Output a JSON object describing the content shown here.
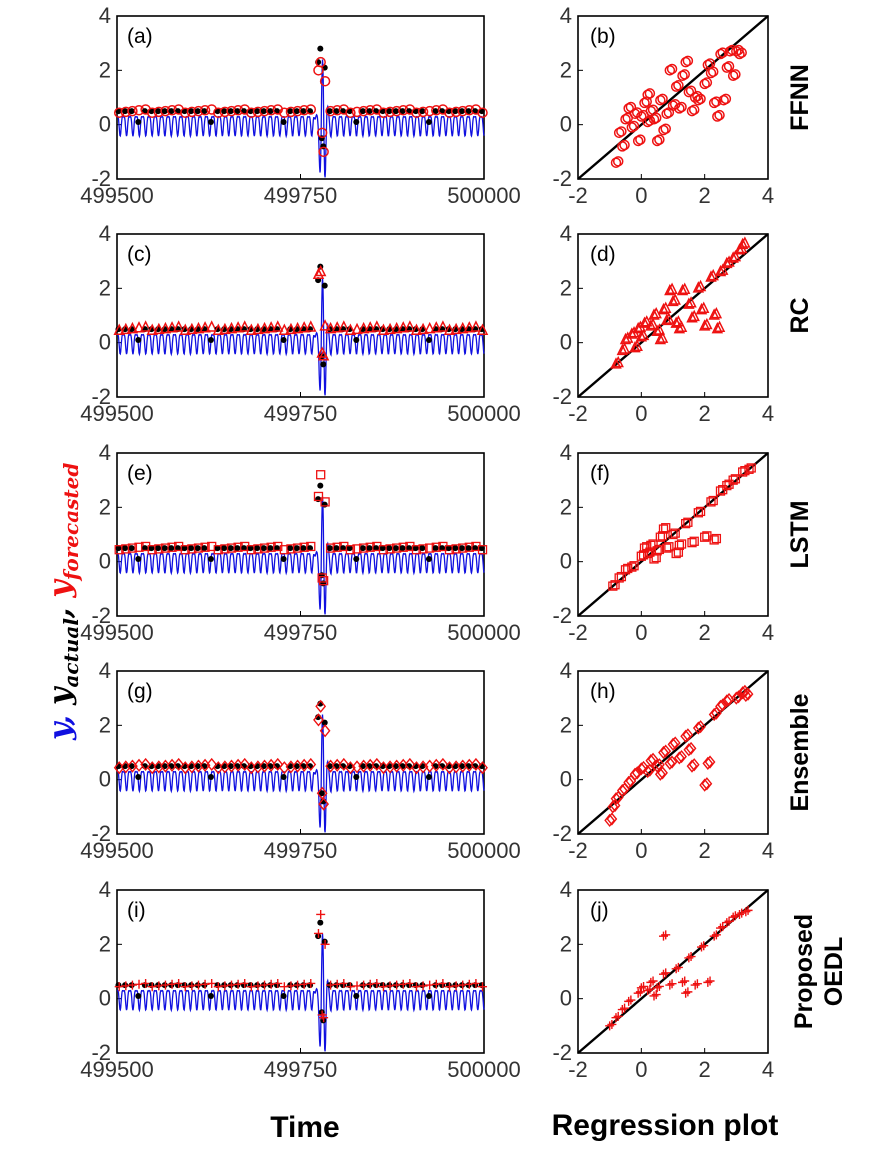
{
  "figure": {
    "y_axis_label": {
      "y": "y",
      "comma1": ",",
      "y_actual": "y",
      "actual_sub": "actual",
      "comma2": ",",
      "y_forecasted": "y",
      "forecasted_sub": "forecasted"
    },
    "x_axis_label": "Time",
    "regression_label": "Regression plot",
    "colors": {
      "y": "#1010e0",
      "actual": "#000000",
      "forecast": "#ee1111",
      "diagonal": "#000000"
    }
  },
  "chart_data": [
    {
      "type": "line",
      "panel": "(a)",
      "model": "FFNN",
      "marker": "circle",
      "xlim": [
        499500,
        500000
      ],
      "ylim": [
        -2,
        4
      ],
      "xticks": [
        499500,
        499750,
        500000
      ],
      "yticks": [
        -2,
        0,
        2,
        4
      ],
      "xtick_labels": [
        "499500",
        "499750",
        "500000"
      ],
      "ytick_labels": [
        "-2",
        "0",
        "2",
        "4"
      ],
      "series": [
        {
          "name": "y",
          "description": "periodic signal oscillating between about -0.4 and 0.4 with an extreme burst near 499780"
        },
        {
          "name": "y_actual",
          "burst_values": [
            2.3,
            2.8,
            2.1,
            -0.5,
            -0.8
          ],
          "baseline": 0.5
        },
        {
          "name": "y_forecasted",
          "burst_values": [
            2.0,
            2.3,
            1.6,
            -0.3,
            -1.0
          ],
          "baseline": 0.5
        }
      ]
    },
    {
      "type": "scatter",
      "panel": "(b)",
      "model": "FFNN",
      "marker": "circle",
      "xlim": [
        -2,
        4
      ],
      "ylim": [
        -2,
        4
      ],
      "xticks": [
        -2,
        0,
        2,
        4
      ],
      "yticks": [
        -2,
        0,
        2,
        4
      ],
      "xtick_labels": [
        "-2",
        "0",
        "2",
        "4"
      ],
      "ytick_labels": [
        "-2",
        "0",
        "2",
        "4"
      ],
      "points": [
        [
          -0.8,
          -1.4
        ],
        [
          -0.6,
          -0.8
        ],
        [
          -0.7,
          -0.3
        ],
        [
          -0.5,
          0.2
        ],
        [
          -0.3,
          -0.1
        ],
        [
          -0.2,
          0.4
        ],
        [
          0,
          0.3
        ],
        [
          0.1,
          0.8
        ],
        [
          0.2,
          0.1
        ],
        [
          0.3,
          0.5
        ],
        [
          0.4,
          0.2
        ],
        [
          0.5,
          -0.6
        ],
        [
          0.6,
          0.9
        ],
        [
          0.8,
          0.4
        ],
        [
          1.0,
          0.7
        ],
        [
          1.1,
          1.4
        ],
        [
          1.2,
          0.6
        ],
        [
          1.3,
          1.8
        ],
        [
          1.5,
          1.2
        ],
        [
          1.6,
          0.5
        ],
        [
          1.8,
          0.9
        ],
        [
          2.0,
          1.5
        ],
        [
          2.1,
          2.2
        ],
        [
          2.2,
          1.9
        ],
        [
          2.4,
          0.3
        ],
        [
          2.5,
          2.6
        ],
        [
          2.6,
          0.9
        ],
        [
          2.8,
          2.7
        ],
        [
          2.9,
          1.8
        ],
        [
          3.1,
          2.6
        ],
        [
          0.7,
          -0.2
        ],
        [
          -0.1,
          -0.6
        ],
        [
          0.9,
          2.0
        ],
        [
          1.4,
          2.3
        ],
        [
          2.3,
          0.8
        ],
        [
          -0.4,
          0.6
        ],
        [
          0.2,
          1.1
        ],
        [
          1.7,
          1.0
        ],
        [
          2.7,
          2.1
        ],
        [
          3.0,
          2.7
        ]
      ]
    },
    {
      "type": "line",
      "panel": "(c)",
      "model": "RC",
      "marker": "triangle",
      "xlim": [
        499500,
        500000
      ],
      "ylim": [
        -2,
        4
      ],
      "xticks": [
        499500,
        499750,
        500000
      ],
      "yticks": [
        -2,
        0,
        2,
        4
      ],
      "xtick_labels": [
        "499500",
        "499750",
        "500000"
      ],
      "ytick_labels": [
        "-2",
        "0",
        "2",
        "4"
      ],
      "series": [
        {
          "name": "y",
          "description": "periodic signal oscillating between about -0.4 and 0.4 with an extreme burst near 499780"
        },
        {
          "name": "y_actual",
          "burst_values": [
            2.3,
            2.8,
            2.1,
            -0.5,
            -0.8
          ],
          "baseline": 0.5
        },
        {
          "name": "y_forecasted",
          "burst_values": [
            2.5,
            2.6,
            0.6,
            -0.4,
            -0.5
          ],
          "baseline": 0.5
        }
      ]
    },
    {
      "type": "scatter",
      "panel": "(d)",
      "model": "RC",
      "marker": "triangle",
      "xlim": [
        -2,
        4
      ],
      "ylim": [
        -2,
        4
      ],
      "xticks": [
        -2,
        0,
        2,
        4
      ],
      "yticks": [
        -2,
        0,
        2,
        4
      ],
      "xtick_labels": [
        "-2",
        "0",
        "2",
        "4"
      ],
      "ytick_labels": [
        "-2",
        "0",
        "2",
        "4"
      ],
      "points": [
        [
          -0.8,
          -0.8
        ],
        [
          -0.6,
          -0.3
        ],
        [
          -0.5,
          0.1
        ],
        [
          -0.3,
          0.3
        ],
        [
          -0.1,
          0.5
        ],
        [
          0,
          0.2
        ],
        [
          0.1,
          0.7
        ],
        [
          0.3,
          0.6
        ],
        [
          0.4,
          1.0
        ],
        [
          0.5,
          0.4
        ],
        [
          0.7,
          1.2
        ],
        [
          0.8,
          0.8
        ],
        [
          1.0,
          1.5
        ],
        [
          1.1,
          0.7
        ],
        [
          1.3,
          1.9
        ],
        [
          1.5,
          1.4
        ],
        [
          1.6,
          0.9
        ],
        [
          1.8,
          2.0
        ],
        [
          2.0,
          0.6
        ],
        [
          2.2,
          2.4
        ],
        [
          2.4,
          0.5
        ],
        [
          2.5,
          2.6
        ],
        [
          2.7,
          2.9
        ],
        [
          2.9,
          3.1
        ],
        [
          3.1,
          3.4
        ],
        [
          3.2,
          3.6
        ],
        [
          1.2,
          0.5
        ],
        [
          0.6,
          0.1
        ],
        [
          -0.2,
          -0.2
        ],
        [
          1.9,
          1.2
        ],
        [
          2.3,
          1.0
        ],
        [
          0.9,
          1.9
        ]
      ]
    },
    {
      "type": "line",
      "panel": "(e)",
      "model": "LSTM",
      "marker": "square",
      "xlim": [
        499500,
        500000
      ],
      "ylim": [
        -2,
        4
      ],
      "xticks": [
        499500,
        499750,
        500000
      ],
      "yticks": [
        -2,
        0,
        2,
        4
      ],
      "xtick_labels": [
        "499500",
        "499750",
        "500000"
      ],
      "ytick_labels": [
        "-2",
        "0",
        "2",
        "4"
      ],
      "series": [
        {
          "name": "y",
          "description": "periodic signal oscillating between about -0.4 and 0.4 with an extreme burst near 499780"
        },
        {
          "name": "y_actual",
          "burst_values": [
            2.3,
            2.8,
            2.1,
            -0.5,
            -0.8
          ],
          "baseline": 0.5
        },
        {
          "name": "y_forecasted",
          "burst_values": [
            2.4,
            3.2,
            2.2,
            -0.6,
            -0.7
          ],
          "baseline": 0.5
        }
      ]
    },
    {
      "type": "scatter",
      "panel": "(f)",
      "model": "LSTM",
      "marker": "square",
      "xlim": [
        -2,
        4
      ],
      "ylim": [
        -2,
        4
      ],
      "xticks": [
        -2,
        0,
        2,
        4
      ],
      "yticks": [
        -2,
        0,
        2,
        4
      ],
      "xtick_labels": [
        "-2",
        "0",
        "2",
        "4"
      ],
      "ytick_labels": [
        "-2",
        "0",
        "2",
        "4"
      ],
      "points": [
        [
          -0.9,
          -0.9
        ],
        [
          -0.7,
          -0.6
        ],
        [
          -0.5,
          -0.3
        ],
        [
          -0.3,
          -0.2
        ],
        [
          0,
          0.2
        ],
        [
          0.1,
          0.5
        ],
        [
          0.2,
          0.3
        ],
        [
          0.3,
          0.6
        ],
        [
          0.5,
          0.4
        ],
        [
          0.6,
          0.9
        ],
        [
          0.8,
          0.5
        ],
        [
          1.0,
          1.0
        ],
        [
          1.2,
          0.6
        ],
        [
          1.4,
          1.4
        ],
        [
          1.6,
          0.7
        ],
        [
          1.8,
          1.8
        ],
        [
          2.0,
          0.9
        ],
        [
          2.2,
          2.2
        ],
        [
          2.3,
          0.8
        ],
        [
          2.5,
          2.6
        ],
        [
          2.7,
          2.8
        ],
        [
          2.9,
          3.0
        ],
        [
          3.2,
          3.3
        ],
        [
          3.4,
          3.4
        ],
        [
          0.4,
          0.1
        ],
        [
          1.1,
          0.3
        ],
        [
          0.7,
          1.2
        ]
      ]
    },
    {
      "type": "line",
      "panel": "(g)",
      "model": "Ensemble",
      "marker": "diamond",
      "xlim": [
        499500,
        500000
      ],
      "ylim": [
        -2,
        4
      ],
      "xticks": [
        499500,
        499750,
        500000
      ],
      "yticks": [
        -2,
        0,
        2,
        4
      ],
      "xtick_labels": [
        "499500",
        "499750",
        "500000"
      ],
      "ytick_labels": [
        "-2",
        "0",
        "2",
        "4"
      ],
      "series": [
        {
          "name": "y",
          "description": "periodic signal oscillating between about -0.4 and 0.4 with an extreme burst near 499780"
        },
        {
          "name": "y_actual",
          "burst_values": [
            2.3,
            2.8,
            2.1,
            -0.5,
            -0.8
          ],
          "baseline": 0.5
        },
        {
          "name": "y_forecasted",
          "burst_values": [
            2.2,
            2.7,
            1.8,
            -0.5,
            -0.9
          ],
          "baseline": 0.5
        }
      ]
    },
    {
      "type": "scatter",
      "panel": "(h)",
      "model": "Ensemble",
      "marker": "diamond",
      "xlim": [
        -2,
        4
      ],
      "ylim": [
        -2,
        4
      ],
      "xticks": [
        -2,
        0,
        2,
        4
      ],
      "yticks": [
        -2,
        0,
        2,
        4
      ],
      "xtick_labels": [
        "-2",
        "0",
        "2",
        "4"
      ],
      "ytick_labels": [
        "-2",
        "0",
        "2",
        "4"
      ],
      "points": [
        [
          -1.0,
          -1.5
        ],
        [
          -0.8,
          -0.7
        ],
        [
          -0.6,
          -0.4
        ],
        [
          -0.4,
          -0.1
        ],
        [
          -0.2,
          0.2
        ],
        [
          0,
          0.4
        ],
        [
          0.2,
          0.3
        ],
        [
          0.3,
          0.7
        ],
        [
          0.5,
          0.5
        ],
        [
          0.7,
          1.0
        ],
        [
          0.9,
          0.6
        ],
        [
          1.0,
          1.3
        ],
        [
          1.2,
          0.8
        ],
        [
          1.4,
          1.6
        ],
        [
          1.6,
          0.5
        ],
        [
          1.8,
          1.9
        ],
        [
          2.0,
          -0.2
        ],
        [
          2.1,
          0.6
        ],
        [
          2.3,
          2.4
        ],
        [
          2.5,
          2.7
        ],
        [
          2.7,
          2.9
        ],
        [
          3.0,
          3.0
        ],
        [
          3.2,
          3.2
        ],
        [
          3.3,
          3.1
        ],
        [
          -0.9,
          -1.0
        ],
        [
          0.6,
          0.2
        ],
        [
          1.5,
          1.1
        ]
      ]
    },
    {
      "type": "line",
      "panel": "(i)",
      "model": "Proposed OEDL",
      "marker": "plus",
      "xlim": [
        499500,
        500000
      ],
      "ylim": [
        -2,
        4
      ],
      "xticks": [
        499500,
        499750,
        500000
      ],
      "yticks": [
        -2,
        0,
        2,
        4
      ],
      "xtick_labels": [
        "499500",
        "499750",
        "500000"
      ],
      "ytick_labels": [
        "-2",
        "0",
        "2",
        "4"
      ],
      "series": [
        {
          "name": "y",
          "description": "periodic signal oscillating between about -0.4 and 0.4 with an extreme burst near 499780"
        },
        {
          "name": "y_actual",
          "burst_values": [
            2.3,
            2.8,
            2.1,
            -0.5,
            -0.8
          ],
          "baseline": 0.5
        },
        {
          "name": "y_forecasted",
          "burst_values": [
            2.4,
            3.1,
            2.0,
            -0.6,
            -0.7
          ],
          "baseline": 0.5
        }
      ]
    },
    {
      "type": "scatter",
      "panel": "(j)",
      "model": "Proposed OEDL",
      "marker": "plus",
      "xlim": [
        -2,
        4
      ],
      "ylim": [
        -2,
        4
      ],
      "xticks": [
        -2,
        0,
        2,
        4
      ],
      "yticks": [
        -2,
        0,
        2,
        4
      ],
      "xtick_labels": [
        "-2",
        "0",
        "2",
        "4"
      ],
      "ytick_labels": [
        "-2",
        "0",
        "2",
        "4"
      ],
      "points": [
        [
          -1.0,
          -1.0
        ],
        [
          -0.8,
          -0.7
        ],
        [
          -0.6,
          -0.4
        ],
        [
          -0.4,
          -0.1
        ],
        [
          -0.1,
          0.2
        ],
        [
          0,
          0.4
        ],
        [
          0.2,
          0.3
        ],
        [
          0.3,
          0.6
        ],
        [
          0.5,
          0.4
        ],
        [
          0.7,
          0.9
        ],
        [
          0.9,
          0.5
        ],
        [
          1.1,
          1.1
        ],
        [
          1.3,
          0.6
        ],
        [
          1.5,
          1.5
        ],
        [
          1.7,
          0.5
        ],
        [
          1.9,
          1.9
        ],
        [
          2.1,
          0.6
        ],
        [
          2.3,
          2.3
        ],
        [
          2.5,
          2.6
        ],
        [
          2.7,
          2.8
        ],
        [
          2.9,
          3.0
        ],
        [
          3.1,
          3.1
        ],
        [
          3.3,
          3.2
        ],
        [
          0.7,
          2.3
        ],
        [
          1.4,
          0.2
        ],
        [
          0.4,
          0.1
        ]
      ]
    }
  ]
}
